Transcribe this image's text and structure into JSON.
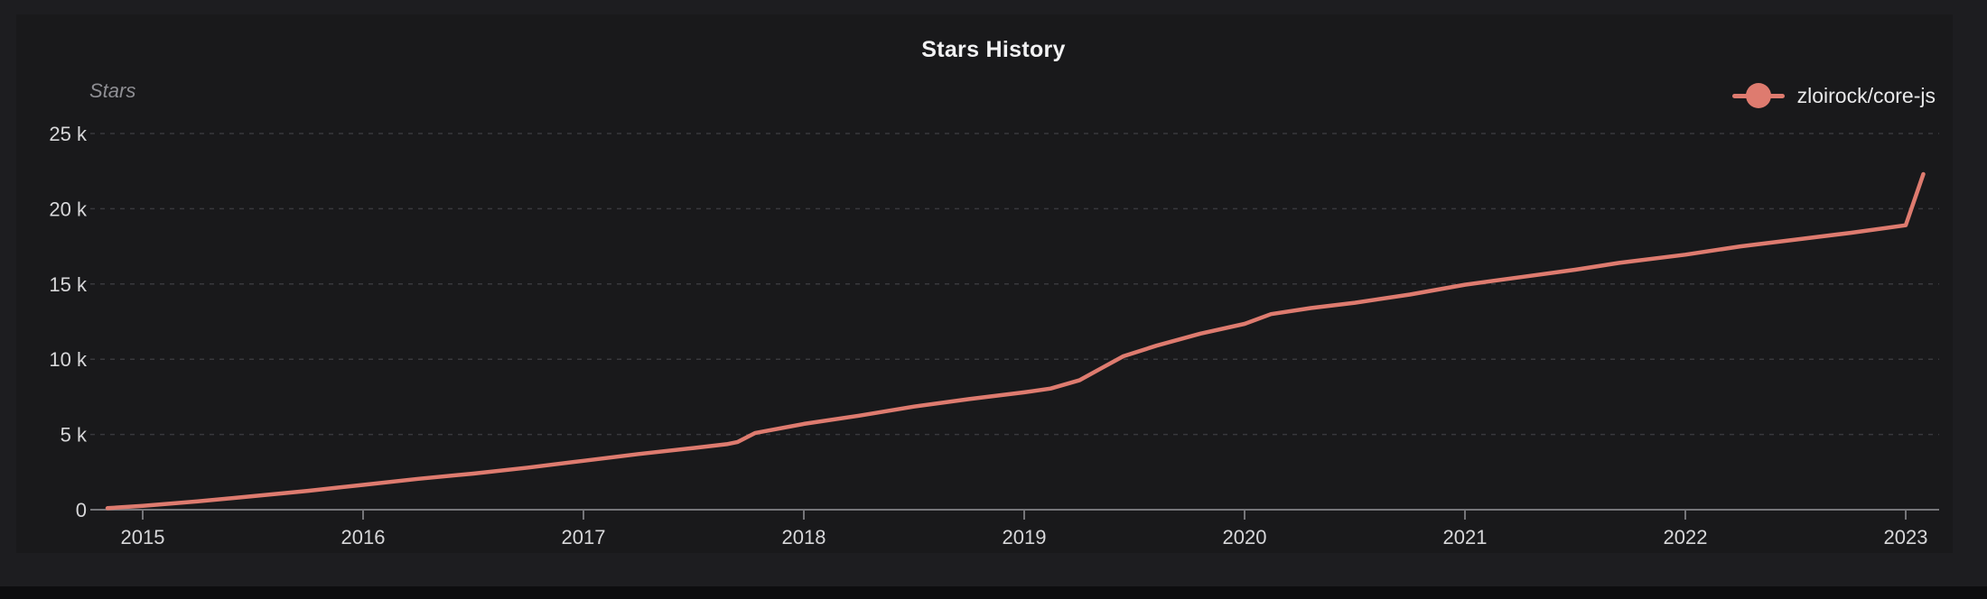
{
  "chart": {
    "title": "Stars History",
    "y_axis_name": "Stars",
    "legend": {
      "label": "zloirock/core-js",
      "color": "#de7b6f"
    },
    "colors": {
      "page_background": "#1d1d20",
      "card_background": "#19191b",
      "line": "#de7b6f",
      "grid": "#39393d",
      "axis": "#757579",
      "tick_label": "#d7d7d9"
    }
  },
  "chart_data": {
    "type": "line",
    "title": "Stars History",
    "xlabel": "",
    "ylabel": "Stars",
    "legend_position": "top-right",
    "legend_entries": [
      "zloirock/core-js"
    ],
    "grid": "horizontal-dashed",
    "xlim": [
      2014.72,
      2023.37
    ],
    "ylim": [
      0,
      25000
    ],
    "x_ticks": [
      2015,
      2016,
      2017,
      2018,
      2019,
      2020,
      2021,
      2022,
      2023
    ],
    "y_ticks": [
      {
        "value": 0,
        "label": "0"
      },
      {
        "value": 5000,
        "label": "5 k"
      },
      {
        "value": 10000,
        "label": "10 k"
      },
      {
        "value": 15000,
        "label": "15 k"
      },
      {
        "value": 20000,
        "label": "20 k"
      },
      {
        "value": 25000,
        "label": "25 k"
      }
    ],
    "series": [
      {
        "name": "zloirock/core-js",
        "color": "#de7b6f",
        "points": [
          [
            2014.84,
            100
          ],
          [
            2015.0,
            250
          ],
          [
            2015.25,
            550
          ],
          [
            2015.5,
            900
          ],
          [
            2015.75,
            1250
          ],
          [
            2016.0,
            1650
          ],
          [
            2016.25,
            2050
          ],
          [
            2016.5,
            2400
          ],
          [
            2016.75,
            2800
          ],
          [
            2017.0,
            3250
          ],
          [
            2017.25,
            3700
          ],
          [
            2017.5,
            4100
          ],
          [
            2017.65,
            4350
          ],
          [
            2017.7,
            4500
          ],
          [
            2017.78,
            5100
          ],
          [
            2018.0,
            5700
          ],
          [
            2018.25,
            6250
          ],
          [
            2018.5,
            6850
          ],
          [
            2018.75,
            7350
          ],
          [
            2019.0,
            7800
          ],
          [
            2019.12,
            8050
          ],
          [
            2019.25,
            8600
          ],
          [
            2019.35,
            9400
          ],
          [
            2019.45,
            10200
          ],
          [
            2019.6,
            10900
          ],
          [
            2019.8,
            11700
          ],
          [
            2020.0,
            12350
          ],
          [
            2020.12,
            13000
          ],
          [
            2020.3,
            13400
          ],
          [
            2020.5,
            13750
          ],
          [
            2020.75,
            14300
          ],
          [
            2021.0,
            14950
          ],
          [
            2021.25,
            15450
          ],
          [
            2021.5,
            15950
          ],
          [
            2021.7,
            16400
          ],
          [
            2022.0,
            16950
          ],
          [
            2022.25,
            17500
          ],
          [
            2022.5,
            17950
          ],
          [
            2022.75,
            18400
          ],
          [
            2023.0,
            18900
          ],
          [
            2023.08,
            22300
          ]
        ]
      }
    ]
  }
}
